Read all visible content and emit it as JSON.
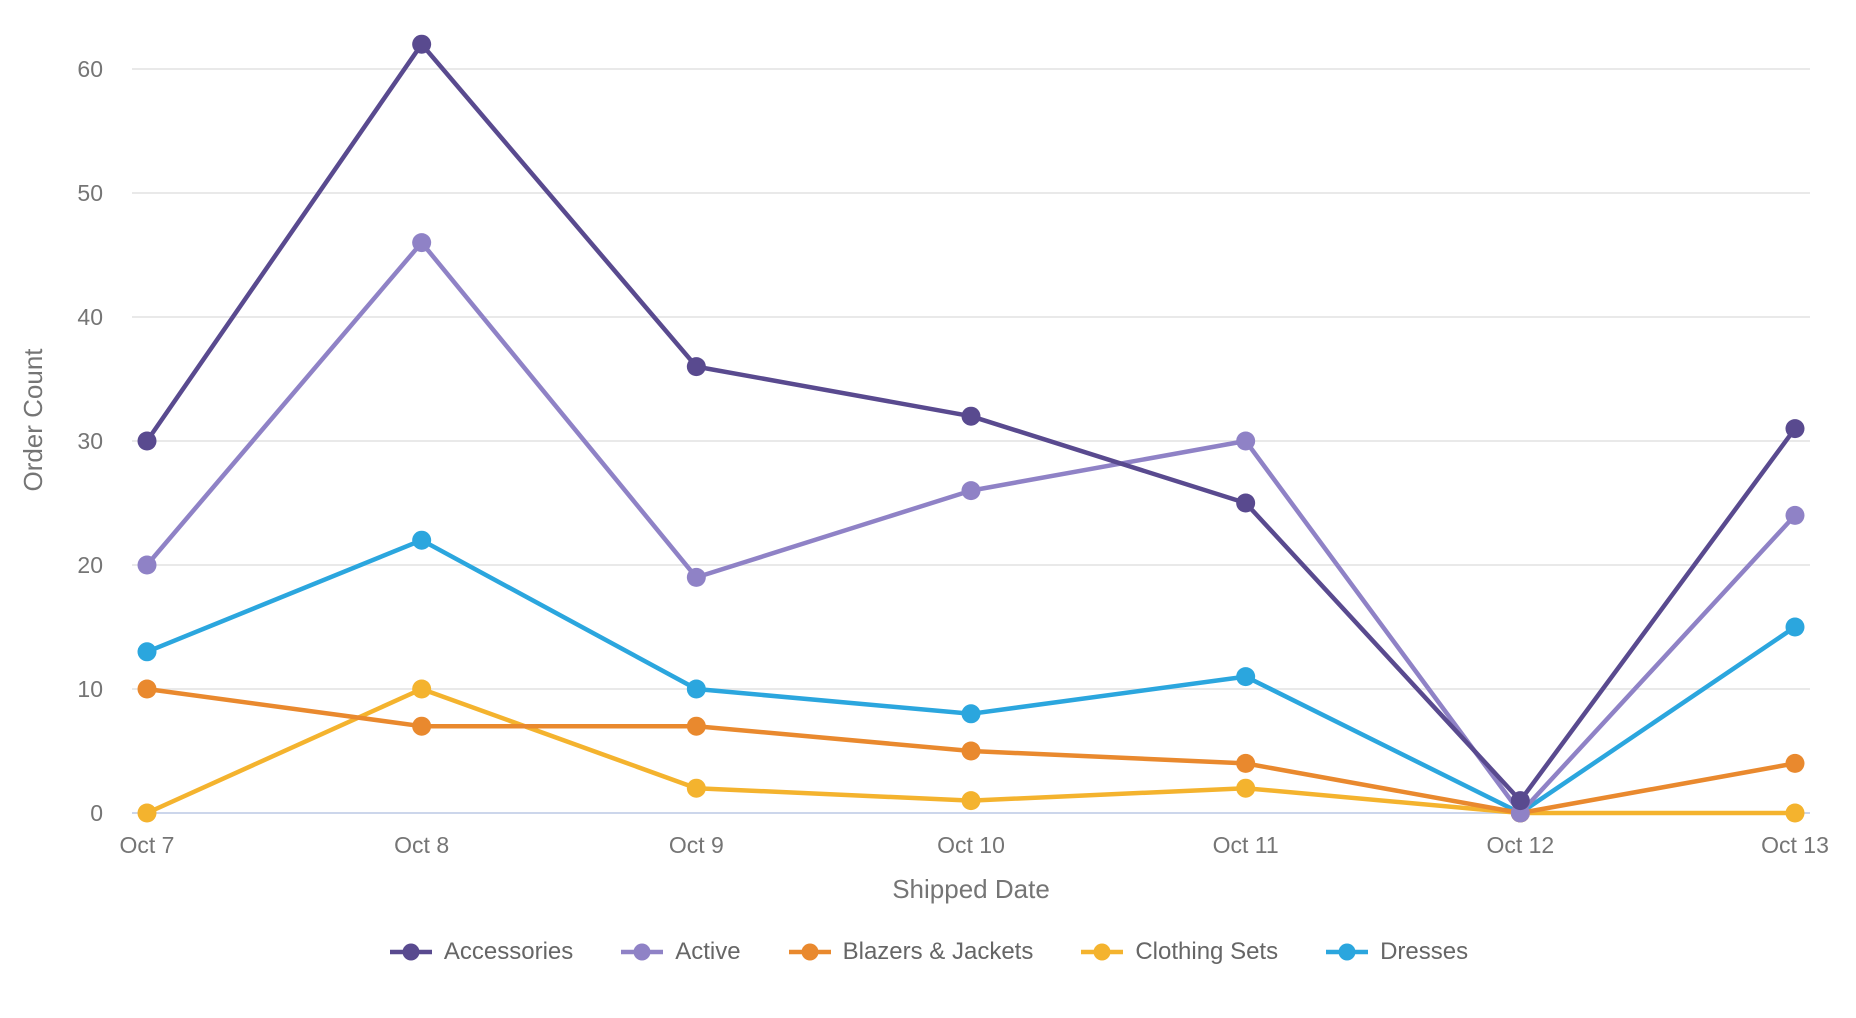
{
  "chart_data": {
    "type": "line",
    "title": "",
    "xlabel": "Shipped Date",
    "ylabel": "Order Count",
    "categories": [
      "Oct 7",
      "Oct 8",
      "Oct 9",
      "Oct 10",
      "Oct 11",
      "Oct 12",
      "Oct 13"
    ],
    "y_ticks": [
      0,
      10,
      20,
      30,
      40,
      50,
      60
    ],
    "ylim": [
      0,
      65.5
    ],
    "grid": "horizontal",
    "legend_position": "bottom",
    "markers": "filled-circle",
    "series": [
      {
        "name": "Accessories",
        "color": "#594A8F",
        "values": [
          30,
          62,
          36,
          32,
          25,
          1,
          31
        ]
      },
      {
        "name": "Active",
        "color": "#8F82C6",
        "values": [
          20,
          46,
          19,
          26,
          30,
          0,
          24
        ]
      },
      {
        "name": "Blazers & Jackets",
        "color": "#E9892E",
        "values": [
          10,
          7,
          7,
          5,
          4,
          0,
          4
        ]
      },
      {
        "name": "Clothing Sets",
        "color": "#F4B32E",
        "values": [
          0,
          10,
          2,
          1,
          2,
          0,
          0
        ]
      },
      {
        "name": "Dresses",
        "color": "#2BA6DE",
        "values": [
          13,
          22,
          10,
          8,
          11,
          0,
          15
        ]
      }
    ],
    "axis_line_color": "#CCD6EB",
    "grid_color": "#E9E9E9",
    "text_color": "#757575"
  }
}
